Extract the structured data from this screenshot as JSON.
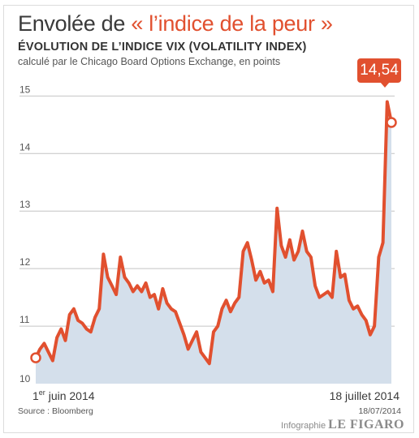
{
  "header": {
    "title_prefix": "Envolée de ",
    "title_accent": "« l’indice de la peur »",
    "subtitle": "ÉVOLUTION DE L’INDICE VIX  (VOLATILITY INDEX)",
    "note": "calculé par le Chicago Board Options Exchange, en points"
  },
  "footer": {
    "source": "Source : Bloomberg",
    "date": "18/07/2014",
    "credit_prefix": "Infographie ",
    "credit_brand": "LE FIGARO"
  },
  "colors": {
    "line": "#e1502f",
    "area": "#d4dfeb",
    "grid": "#c4c4c4",
    "text": "#3a3a3a"
  },
  "chart_data": {
    "type": "area",
    "title": "ÉVOLUTION DE L’INDICE VIX  (VOLATILITY INDEX)",
    "xlabel": "",
    "ylabel": "",
    "ylim": [
      10,
      15.4
    ],
    "yticks": [
      10,
      11,
      12,
      13,
      14,
      15
    ],
    "ytick_labels": [
      "10",
      "11",
      "12",
      "13",
      "14",
      "15"
    ],
    "grid": true,
    "x_range": [
      "2014-06-01",
      "2014-07-18"
    ],
    "x_tick_labels": [
      {
        "date": "2014-06-01",
        "label_main": "1",
        "label_sup": "er",
        "label_rest": " juin 2014"
      },
      {
        "date": "2014-07-18",
        "label_main": "18 juillet 2014",
        "label_sup": "",
        "label_rest": ""
      }
    ],
    "series": [
      {
        "values": [
          10.45,
          10.6,
          10.7,
          10.55,
          10.4,
          10.8,
          10.95,
          10.75,
          11.2,
          11.3,
          11.1,
          11.05,
          10.95,
          10.9,
          11.15,
          11.3,
          12.25,
          11.85,
          11.7,
          11.55,
          12.2,
          11.85,
          11.75,
          11.6,
          11.7,
          11.6,
          11.75,
          11.5,
          11.55,
          11.3,
          11.65,
          11.4,
          11.3,
          11.25,
          11.05,
          10.85,
          10.6,
          10.75,
          10.9,
          10.55,
          10.45,
          10.35,
          10.9,
          11.0,
          11.3,
          11.45,
          11.25,
          11.4,
          11.5,
          12.3,
          12.45,
          12.15,
          11.8,
          11.95,
          11.75,
          11.8,
          11.6,
          13.05,
          12.4,
          12.2,
          12.5,
          12.15,
          12.3,
          12.65,
          12.3,
          12.2,
          11.7,
          11.5,
          11.55,
          11.6,
          11.5,
          12.3,
          11.85,
          11.9,
          11.45,
          11.3,
          11.35,
          11.2,
          11.1,
          10.85,
          11.0,
          12.2,
          12.45,
          14.9,
          14.54
        ]
      }
    ],
    "annotations": [
      {
        "text": "14,54",
        "x": "2014-07-18",
        "y": 14.54
      }
    ]
  }
}
